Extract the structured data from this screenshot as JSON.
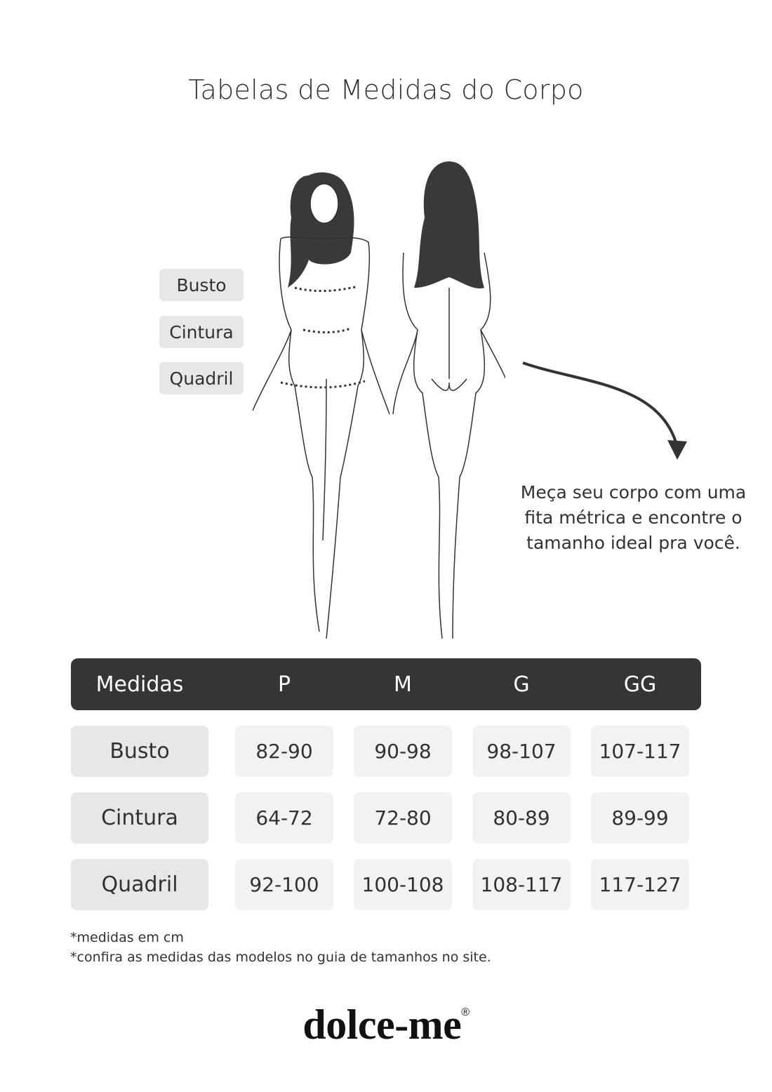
{
  "title": "Tabelas de Medidas do Corpo",
  "body_labels": [
    "Busto",
    "Cintura",
    "Quadril"
  ],
  "note": "Meça seu corpo com uma fita métrica e encontre o tamanho ideal pra você.",
  "table": {
    "headers": [
      "Medidas",
      "P",
      "M",
      "G",
      "GG"
    ],
    "rows": [
      {
        "label": "Busto",
        "values": [
          "82-90",
          "90-98",
          "98-107",
          "107-117"
        ]
      },
      {
        "label": "Cintura",
        "values": [
          "64-72",
          "72-80",
          "80-89",
          "89-99"
        ]
      },
      {
        "label": "Quadril",
        "values": [
          "92-100",
          "100-108",
          "108-117",
          "117-127"
        ]
      }
    ]
  },
  "footnotes": [
    "*medidas em cm",
    "*confira as medidas das modelos no guia de tamanhos no site."
  ],
  "logo": {
    "text": "dolce-me",
    "mark": "®"
  },
  "colors": {
    "header_bg": "#363435",
    "label_bg": "#e6e7e8",
    "cell_bg": "#f1f2f2",
    "text": "#333132"
  }
}
